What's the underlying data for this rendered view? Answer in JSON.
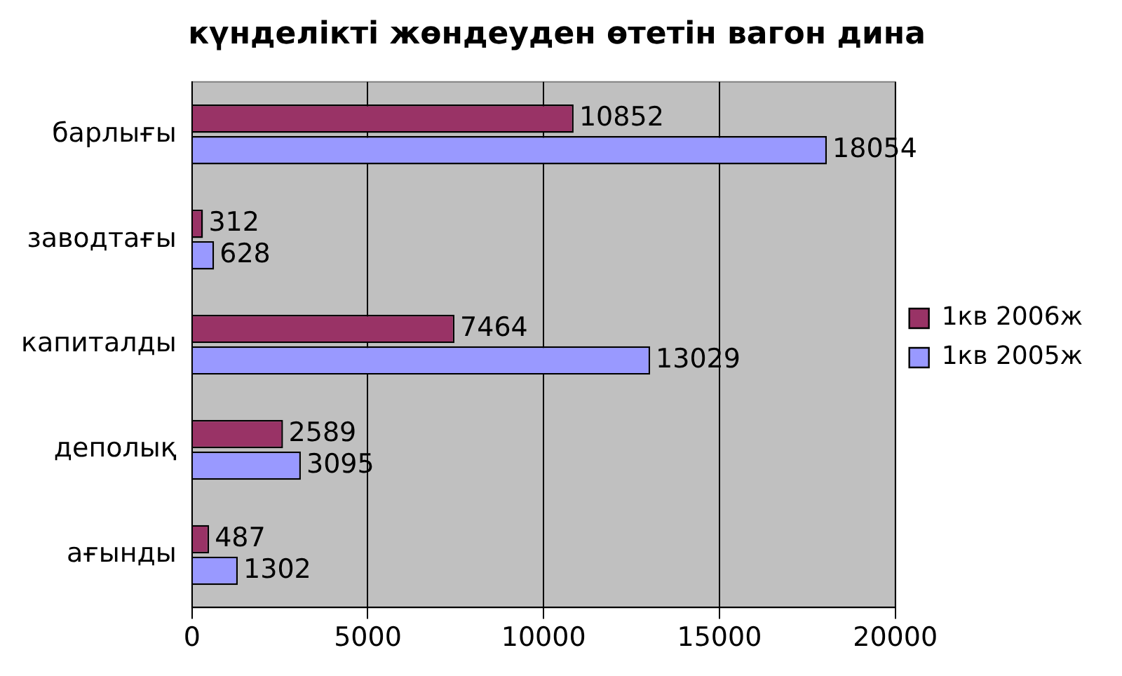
{
  "chart_data": {
    "type": "bar",
    "orientation": "horizontal",
    "title": "күнделікті жөндеуден өтетін вагон дина",
    "categories": [
      "барлығы",
      "заводтағы",
      "капиталды",
      "деполық",
      "ағынды"
    ],
    "series": [
      {
        "name": "1кв 2006ж",
        "color": "#993366",
        "values": [
          10852,
          312,
          7464,
          2589,
          487
        ]
      },
      {
        "name": "1кв 2005ж",
        "color": "#9999ff",
        "values": [
          18054,
          628,
          13029,
          3095,
          1302
        ]
      }
    ],
    "xlim": [
      0,
      20000
    ],
    "xticks": [
      0,
      5000,
      10000,
      15000,
      20000
    ],
    "grid": "x",
    "legend": "right",
    "data_labels": true
  }
}
